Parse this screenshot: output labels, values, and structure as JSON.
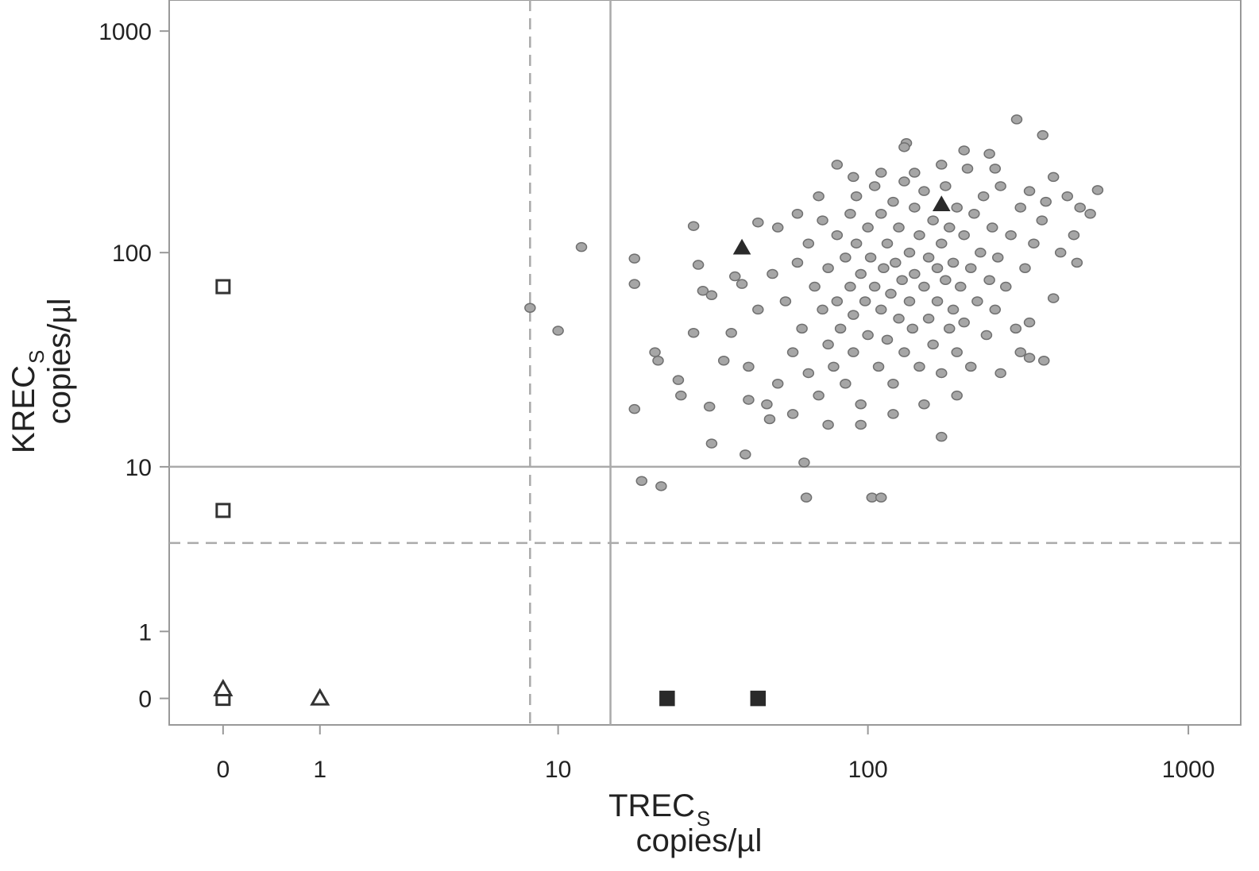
{
  "chart_data": {
    "type": "scatter",
    "x_label": "TREC",
    "x_label_sub": "S",
    "x_label_unit": "copies/µl",
    "y_label": "KREC",
    "y_label_sub": "S",
    "y_label_unit": "copies/µl",
    "xscale": "log1p",
    "yscale": "log1p",
    "xlim": [
      -0.32,
      1455
    ],
    "ylim": [
      -0.24,
      1380
    ],
    "xticks": [
      0,
      1,
      10,
      100,
      1000
    ],
    "yticks": [
      0,
      1,
      10,
      100,
      1000
    ],
    "reference_lines": [
      {
        "axis": "x",
        "value": 8,
        "style": "dashed"
      },
      {
        "axis": "x",
        "value": 15,
        "style": "solid"
      },
      {
        "axis": "y",
        "value": 10,
        "style": "solid"
      },
      {
        "axis": "y",
        "value": 4,
        "style": "dashed"
      }
    ],
    "series": [
      {
        "marker": "circle",
        "filled": true,
        "color": "#a6a6a6",
        "x": [
          12,
          8,
          10,
          18,
          18,
          21,
          21.5,
          18,
          19,
          22,
          25,
          25.5,
          28,
          29,
          28,
          30,
          32,
          31.5,
          32,
          35,
          37,
          38,
          40,
          41,
          45,
          42,
          49,
          63,
          64,
          103,
          110,
          170,
          292,
          352,
          522,
          495,
          450,
          380,
          355,
          320,
          320,
          132,
          55,
          58,
          60,
          62,
          65,
          65,
          68,
          70,
          72,
          72,
          75,
          75,
          78,
          80,
          80,
          82,
          85,
          85,
          88,
          88,
          90,
          90,
          92,
          92,
          95,
          95,
          98,
          100,
          100,
          102,
          105,
          105,
          108,
          110,
          110,
          112,
          115,
          115,
          118,
          120,
          120,
          122,
          125,
          125,
          128,
          130,
          130,
          135,
          135,
          138,
          140,
          140,
          145,
          145,
          150,
          150,
          155,
          155,
          160,
          160,
          165,
          165,
          170,
          170,
          175,
          175,
          180,
          180,
          185,
          185,
          190,
          190,
          195,
          200,
          200,
          205,
          210,
          210,
          215,
          220,
          225,
          230,
          235,
          240,
          245,
          250,
          255,
          260,
          270,
          280,
          290,
          300,
          310,
          330,
          350,
          380,
          400,
          240,
          200,
          170,
          140,
          110,
          90,
          80,
          70,
          60,
          52,
          48,
          52,
          45,
          50,
          42,
          58,
          75,
          95,
          120,
          150,
          190,
          260,
          300,
          130,
          250,
          320,
          360,
          420,
          440,
          460
        ],
        "values": [
          106,
          56,
          44,
          94,
          72,
          35,
          32,
          19,
          8.5,
          8,
          26,
          22,
          132,
          88,
          43,
          67,
          64,
          19.5,
          13,
          32,
          43,
          78,
          72,
          11.5,
          137,
          21,
          17,
          10.5,
          7,
          7,
          7,
          14,
          400,
          340,
          192,
          150,
          90,
          62,
          32,
          48,
          33,
          313,
          60,
          35,
          90,
          45,
          110,
          28,
          70,
          22,
          140,
          55,
          85,
          38,
          30,
          120,
          60,
          45,
          95,
          25,
          150,
          70,
          52,
          35,
          180,
          110,
          80,
          20,
          60,
          130,
          42,
          95,
          200,
          70,
          30,
          150,
          55,
          85,
          40,
          110,
          65,
          170,
          25,
          90,
          50,
          130,
          75,
          210,
          35,
          100,
          60,
          45,
          160,
          80,
          30,
          120,
          70,
          190,
          50,
          95,
          140,
          38,
          85,
          60,
          110,
          28,
          200,
          75,
          45,
          130,
          90,
          55,
          160,
          35,
          70,
          120,
          48,
          240,
          85,
          30,
          150,
          60,
          100,
          180,
          42,
          75,
          130,
          55,
          95,
          200,
          70,
          120,
          45,
          160,
          85,
          110,
          140,
          220,
          100,
          280,
          290,
          250,
          230,
          230,
          220,
          250,
          180,
          150,
          130,
          20,
          25,
          55,
          80,
          30,
          18,
          16,
          16,
          18,
          20,
          22,
          28,
          35,
          300,
          240,
          190,
          170,
          180,
          120,
          160
        ]
      },
      {
        "marker": "square",
        "filled": false,
        "color": "#333333",
        "x": [
          0,
          0,
          0
        ],
        "values": [
          70,
          6,
          0
        ]
      },
      {
        "marker": "triangle",
        "filled": false,
        "color": "#333333",
        "x": [
          0,
          1
        ],
        "values": [
          0.1,
          0
        ]
      },
      {
        "marker": "triangle",
        "filled": true,
        "color": "#2a2a2a",
        "x": [
          40,
          170
        ],
        "values": [
          105,
          165
        ]
      },
      {
        "marker": "square",
        "filled": true,
        "color": "#2a2a2a",
        "x": [
          23,
          45
        ],
        "values": [
          0,
          0
        ]
      }
    ]
  }
}
